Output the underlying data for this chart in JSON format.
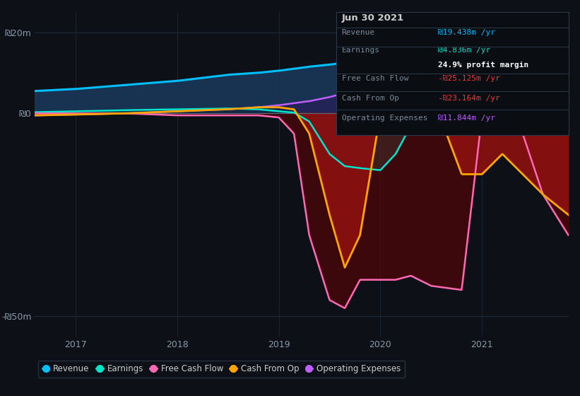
{
  "bg_color": "#0d1117",
  "plot_bg_color": "#0d1117",
  "grid_color": "#1e2d3d",
  "title": "Jun 30 2021",
  "tooltip": {
    "Revenue": {
      "value": "₪19.438m /yr",
      "color": "#00bfff"
    },
    "Earnings": {
      "value": "₪4.836m /yr",
      "color": "#00e5cc"
    },
    "profit_margin": "24.9% profit margin",
    "Free Cash Flow": {
      "value": "-₪25.125m /yr",
      "color": "#ff3333"
    },
    "Cash From Op": {
      "value": "-₪23.164m /yr",
      "color": "#ff3333"
    },
    "Operating Expenses": {
      "value": "₪11.844m /yr",
      "color": "#bf5fff"
    }
  },
  "xlim": [
    2016.6,
    2021.85
  ],
  "ylim": [
    -55,
    25
  ],
  "yticks": [
    -50,
    0,
    20
  ],
  "ytick_labels": [
    "-₪50m",
    "₪0",
    "₪20m"
  ],
  "xticks": [
    2017,
    2018,
    2019,
    2020,
    2021
  ],
  "legend": [
    {
      "label": "Revenue",
      "color": "#00bfff"
    },
    {
      "label": "Earnings",
      "color": "#00e5cc"
    },
    {
      "label": "Free Cash Flow",
      "color": "#ff69b4"
    },
    {
      "label": "Cash From Op",
      "color": "#ffa500"
    },
    {
      "label": "Operating Expenses",
      "color": "#bf5fff"
    }
  ],
  "x": [
    2016.6,
    2017.0,
    2017.5,
    2018.0,
    2018.5,
    2018.8,
    2019.0,
    2019.15,
    2019.3,
    2019.5,
    2019.65,
    2019.8,
    2020.0,
    2020.15,
    2020.3,
    2020.5,
    2020.65,
    2020.8,
    2021.0,
    2021.2,
    2021.4,
    2021.6,
    2021.85
  ],
  "revenue": [
    5.5,
    6.0,
    7.0,
    8.0,
    9.5,
    10.0,
    10.5,
    11.0,
    11.5,
    12.0,
    12.5,
    13.0,
    14.0,
    15.0,
    16.0,
    17.0,
    18.0,
    19.0,
    19.5,
    20.0,
    20.5,
    21.0,
    21.8
  ],
  "earnings": [
    0.3,
    0.5,
    0.8,
    1.0,
    1.2,
    1.0,
    0.5,
    0.2,
    -2.0,
    -10.0,
    -13.0,
    -13.5,
    -14.0,
    -10.0,
    -3.0,
    -1.0,
    0.0,
    1.5,
    2.5,
    3.5,
    4.0,
    4.5,
    5.0
  ],
  "free_cash_flow": [
    0.0,
    0.0,
    0.0,
    -0.5,
    -0.5,
    -0.5,
    -1.0,
    -5.0,
    -30.0,
    -46.0,
    -48.0,
    -41.0,
    -41.0,
    -41.0,
    -40.0,
    -42.5,
    -43.0,
    -43.5,
    -0.5,
    0.0,
    -5.0,
    -20.0,
    -30.0
  ],
  "cash_from_op": [
    -0.5,
    -0.3,
    0.0,
    0.5,
    1.0,
    1.5,
    1.5,
    1.0,
    -5.0,
    -25.0,
    -38.0,
    -30.0,
    0.0,
    15.0,
    14.0,
    5.0,
    -5.0,
    -15.0,
    -15.0,
    -10.0,
    -15.0,
    -20.0,
    -25.0
  ],
  "op_expenses": [
    -0.5,
    -0.3,
    0.0,
    0.5,
    1.0,
    1.5,
    2.0,
    2.5,
    3.0,
    4.0,
    5.0,
    5.5,
    6.5,
    7.0,
    7.5,
    8.0,
    8.5,
    9.0,
    10.0,
    10.5,
    11.0,
    11.5,
    12.0
  ]
}
